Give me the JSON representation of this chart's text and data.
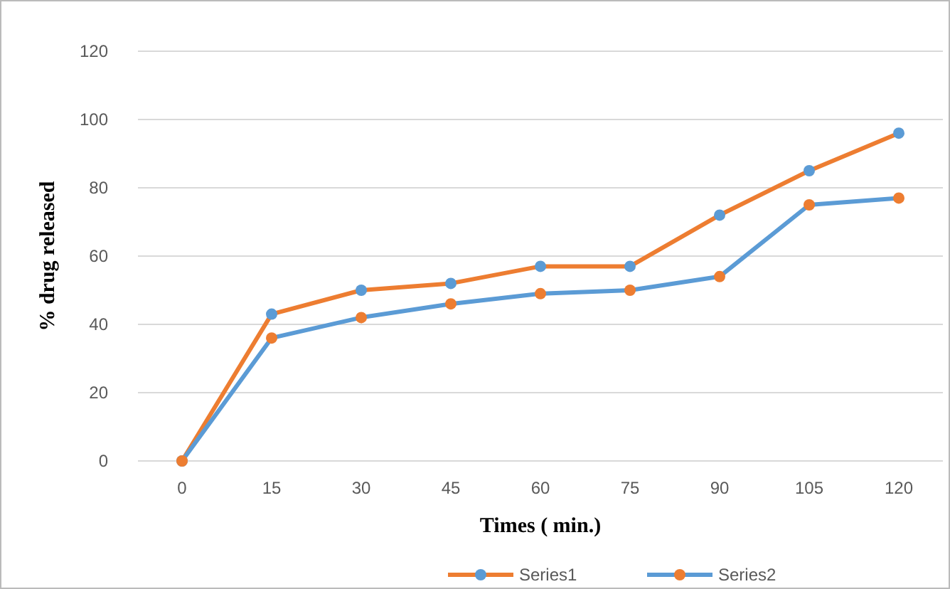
{
  "chart_data": {
    "type": "line",
    "xlabel": "Times ( min.)",
    "ylabel": "% drug released",
    "categories": [
      "0",
      "15",
      "30",
      "45",
      "60",
      "75",
      "90",
      "105",
      "120"
    ],
    "series": [
      {
        "name": "Series1",
        "color": "#ed7d31",
        "colors": [
          "#5b9bd5",
          "#5b9bd5",
          "#5b9bd5",
          "#5b9bd5",
          "#5b9bd5",
          "#5b9bd5",
          "#5b9bd5",
          "#5b9bd5",
          "#5b9bd5"
        ],
        "values": [
          0,
          43,
          50,
          52,
          57,
          57,
          72,
          85,
          96
        ]
      },
      {
        "name": "Series2",
        "color": "#5b9bd5",
        "colors": [
          "#ed7d31",
          "#ed7d31",
          "#ed7d31",
          "#ed7d31",
          "#ed7d31",
          "#ed7d31",
          "#ed7d31",
          "#ed7d31",
          "#ed7d31"
        ],
        "values": [
          0,
          36,
          42,
          46,
          49,
          50,
          54,
          75,
          77
        ]
      }
    ],
    "ylim": [
      0,
      120
    ],
    "yticks": [
      0,
      20,
      40,
      60,
      80,
      100,
      120
    ],
    "grid": "y",
    "legend": "bottom",
    "marker": "circle",
    "line_style": "solid"
  }
}
